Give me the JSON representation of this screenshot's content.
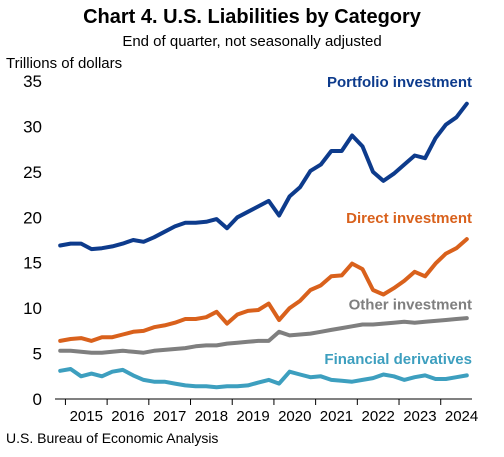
{
  "chart_data": {
    "type": "line",
    "title": "Chart 4. U.S. Liabilities by Category",
    "subtitle": "End of quarter, not seasonally adjusted",
    "ylabel": "Trillions of dollars",
    "source": "U.S. Bureau of Economic Analysis",
    "ylim": [
      0,
      35
    ],
    "yticks": [
      "0",
      "5",
      "10",
      "15",
      "20",
      "25",
      "30",
      "35"
    ],
    "x_tick_labels": [
      "2015",
      "2016",
      "2017",
      "2018",
      "2019",
      "2020",
      "2021",
      "2022",
      "2023",
      "2024"
    ],
    "x_start_year": 2014.75,
    "quarters": [
      "2014Q4",
      "2015Q1",
      "2015Q2",
      "2015Q3",
      "2015Q4",
      "2016Q1",
      "2016Q2",
      "2016Q3",
      "2016Q4",
      "2017Q1",
      "2017Q2",
      "2017Q3",
      "2017Q4",
      "2018Q1",
      "2018Q2",
      "2018Q3",
      "2018Q4",
      "2019Q1",
      "2019Q2",
      "2019Q3",
      "2019Q4",
      "2020Q1",
      "2020Q2",
      "2020Q3",
      "2020Q4",
      "2021Q1",
      "2021Q2",
      "2021Q3",
      "2021Q4",
      "2022Q1",
      "2022Q2",
      "2022Q3",
      "2022Q4",
      "2023Q1",
      "2023Q2",
      "2023Q3",
      "2023Q4",
      "2024Q1",
      "2024Q2",
      "2024Q3"
    ],
    "grid": false,
    "series": [
      {
        "name": "Portfolio investment",
        "color": "#0d3b8c",
        "values": [
          16.9,
          17.1,
          17.1,
          16.5,
          16.6,
          16.8,
          17.1,
          17.5,
          17.3,
          17.8,
          18.4,
          19.0,
          19.4,
          19.4,
          19.5,
          19.8,
          18.8,
          20.0,
          20.6,
          21.2,
          21.8,
          20.2,
          22.3,
          23.3,
          25.1,
          25.8,
          27.3,
          27.3,
          29.0,
          27.8,
          25.0,
          24.0,
          24.8,
          25.8,
          26.8,
          26.5,
          28.7,
          30.2,
          31.0,
          32.5
        ]
      },
      {
        "name": "Direct investment",
        "color": "#d9611c",
        "values": [
          6.4,
          6.6,
          6.7,
          6.4,
          6.8,
          6.8,
          7.1,
          7.4,
          7.5,
          7.9,
          8.1,
          8.4,
          8.8,
          8.8,
          9.0,
          9.6,
          8.3,
          9.3,
          9.7,
          9.8,
          10.5,
          8.7,
          10.0,
          10.8,
          12.0,
          12.5,
          13.5,
          13.6,
          14.9,
          14.3,
          12.0,
          11.5,
          12.2,
          13.0,
          14.0,
          13.5,
          14.9,
          16.0,
          16.6,
          17.6
        ]
      },
      {
        "name": "Other investment",
        "color": "#7f7f7f",
        "values": [
          5.3,
          5.3,
          5.2,
          5.1,
          5.1,
          5.2,
          5.3,
          5.2,
          5.1,
          5.3,
          5.4,
          5.5,
          5.6,
          5.8,
          5.9,
          5.9,
          6.1,
          6.2,
          6.3,
          6.4,
          6.4,
          7.4,
          7.0,
          7.1,
          7.2,
          7.4,
          7.6,
          7.8,
          8.0,
          8.2,
          8.2,
          8.3,
          8.4,
          8.5,
          8.4,
          8.5,
          8.6,
          8.7,
          8.8,
          8.9
        ]
      },
      {
        "name": "Financial derivatives",
        "color": "#3d9fbf",
        "values": [
          3.1,
          3.3,
          2.5,
          2.8,
          2.5,
          3.0,
          3.2,
          2.6,
          2.1,
          1.9,
          1.9,
          1.7,
          1.5,
          1.4,
          1.4,
          1.3,
          1.4,
          1.4,
          1.5,
          1.8,
          2.1,
          1.7,
          3.0,
          2.7,
          2.4,
          2.5,
          2.1,
          2.0,
          1.9,
          2.1,
          2.3,
          2.7,
          2.5,
          2.1,
          2.4,
          2.6,
          2.2,
          2.2,
          2.4,
          2.6
        ]
      }
    ]
  }
}
